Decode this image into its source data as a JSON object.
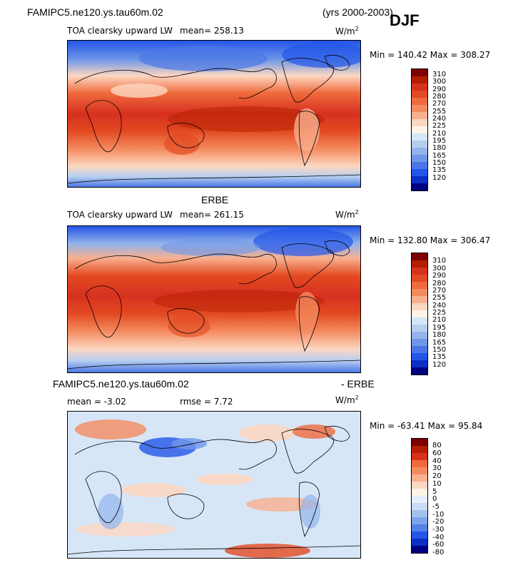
{
  "header": {
    "case_name": "FAMIPC5.ne120.ys.tau60m.02",
    "years": "(yrs 2000-2003)",
    "season": "DJF"
  },
  "panels": [
    {
      "title": "",
      "field_label": "TOA clearsky upward LW",
      "stat1": "mean= 258.13",
      "units_text": "W/m",
      "units_sup": "2",
      "minmax": "Min = 140.42 Max = 308.27",
      "colorbar_ticks": [
        "310",
        "300",
        "290",
        "280",
        "270",
        "255",
        "240",
        "225",
        "210",
        "195",
        "180",
        "165",
        "150",
        "135",
        "120"
      ]
    },
    {
      "title": "ERBE",
      "field_label": "TOA clearsky upward LW",
      "stat1": "mean= 261.15",
      "units_text": "W/m",
      "units_sup": "2",
      "minmax": "Min = 132.80 Max = 306.47",
      "colorbar_ticks": [
        "310",
        "300",
        "290",
        "280",
        "270",
        "255",
        "240",
        "225",
        "210",
        "195",
        "180",
        "165",
        "150",
        "135",
        "120"
      ]
    },
    {
      "title_left": "FAMIPC5.ne120.ys.tau60m.02",
      "title_right": "- ERBE",
      "stat1": "mean =   -3.02",
      "stat2": "rmse =    7.72",
      "units_text": "W/m",
      "units_sup": "2",
      "minmax": "Min = -63.41 Max =  95.84",
      "colorbar_ticks": [
        "80",
        "60",
        "40",
        "30",
        "20",
        "10",
        "5",
        "0",
        "-5",
        "-10",
        "-20",
        "-30",
        "-40",
        "-60",
        "-80"
      ]
    }
  ],
  "colors": {
    "lw_scale": [
      "#7f0000",
      "#b21f00",
      "#d7301f",
      "#e34a21",
      "#ef6a3c",
      "#f48b5f",
      "#f8b08f",
      "#fcd7c2",
      "#fff3e8",
      "#d7e6f7",
      "#b6cff0",
      "#93b4eb",
      "#6f97e8",
      "#4b77e6",
      "#2355e8",
      "#0b2fc4",
      "#000080"
    ],
    "diff_scale": [
      "#7f0000",
      "#b21f00",
      "#d7301f",
      "#ef6a3c",
      "#f48b5f",
      "#f8b08f",
      "#fcd7c2",
      "#fff3e8",
      "#e6eefb",
      "#c9dbf5",
      "#a5c1ef",
      "#7fa3ea",
      "#5580e6",
      "#2355e8",
      "#0b2fc4",
      "#000080"
    ]
  }
}
